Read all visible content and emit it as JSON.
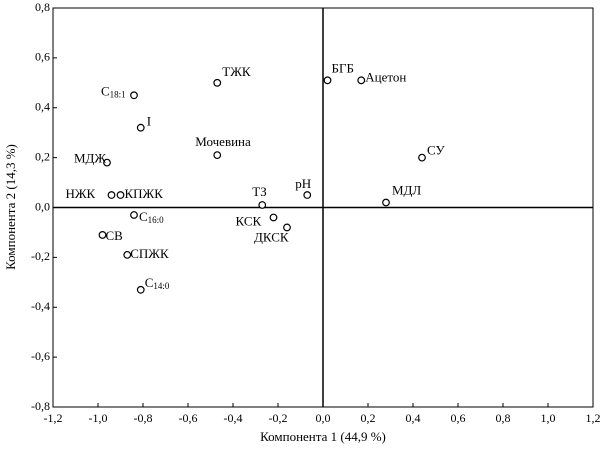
{
  "chart_data": {
    "type": "scatter",
    "x_label": "Компонента 1 (44,9 %)",
    "y_label": "Компонента 2 (14,3 %)",
    "xlim": [
      -1.2,
      1.2
    ],
    "ylim": [
      -0.8,
      0.8
    ],
    "xticks": [
      {
        "value": -1.2,
        "label": "-1,2"
      },
      {
        "value": -1.0,
        "label": "-1,0"
      },
      {
        "value": -0.8,
        "label": "-0,8"
      },
      {
        "value": -0.6,
        "label": "-0,6"
      },
      {
        "value": -0.4,
        "label": "-0,4"
      },
      {
        "value": -0.2,
        "label": "-0,2"
      },
      {
        "value": 0,
        "label": "0,0"
      },
      {
        "value": 0.2,
        "label": "0,2"
      },
      {
        "value": 0.4,
        "label": "0,4"
      },
      {
        "value": 0.6,
        "label": "0,6"
      },
      {
        "value": 0.8,
        "label": "0,8"
      },
      {
        "value": 1.0,
        "label": "1,0"
      },
      {
        "value": 1.2,
        "label": "1,2"
      }
    ],
    "yticks": [
      {
        "value": -0.8,
        "label": "-0,8"
      },
      {
        "value": -0.6,
        "label": "-0,6"
      },
      {
        "value": -0.4,
        "label": "-0,4"
      },
      {
        "value": -0.2,
        "label": "-0,2"
      },
      {
        "value": 0,
        "label": "0,0"
      },
      {
        "value": 0.2,
        "label": "0,2"
      },
      {
        "value": 0.4,
        "label": "0,4"
      },
      {
        "value": 0.6,
        "label": "0,6"
      },
      {
        "value": 0.8,
        "label": "0,8"
      }
    ],
    "color": "#000000",
    "x": [
      -0.84,
      -0.81,
      -0.96,
      -0.94,
      -0.9,
      -0.84,
      -0.98,
      -0.87,
      -0.81,
      -0.47,
      -0.47,
      0.02,
      0.17,
      0.44,
      0.28,
      -0.07,
      -0.27,
      -0.22,
      -0.16
    ],
    "values": [
      0.45,
      0.32,
      0.18,
      0.05,
      0.05,
      -0.03,
      -0.11,
      -0.19,
      -0.33,
      0.5,
      0.21,
      0.51,
      0.51,
      0.2,
      0.02,
      0.05,
      0.01,
      -0.04,
      -0.08
    ],
    "labels": [
      "C",
      "I",
      "МДЖ",
      "НЖК",
      "КПЖК",
      "C",
      "СВ",
      "СПЖК",
      "C",
      "ТЖК",
      "Мочевина",
      "БГБ",
      "Ацетон",
      "СУ",
      "МДЛ",
      "рН",
      "ТЗ",
      "КСК",
      "ДКСК"
    ],
    "label_subscripts": [
      "18:1",
      null,
      null,
      null,
      null,
      "16:0",
      null,
      null,
      "14:0",
      null,
      null,
      null,
      null,
      null,
      null,
      null,
      null,
      null,
      null
    ]
  }
}
